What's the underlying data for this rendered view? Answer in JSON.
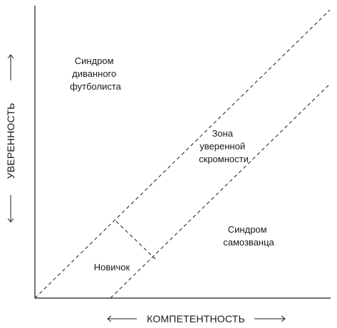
{
  "axes": {
    "x_label": "КОМПЕТЕНТНОСТЬ",
    "y_label": "УВЕРЕННОСТЬ"
  },
  "regions": {
    "couch_footballer": [
      "Синдром",
      "диванного",
      "футболиста"
    ],
    "modesty_zone": [
      "Зона",
      "уверенной",
      "скромности"
    ],
    "impostor": [
      "Синдром",
      "самозванца"
    ],
    "novice": "Новичок"
  }
}
